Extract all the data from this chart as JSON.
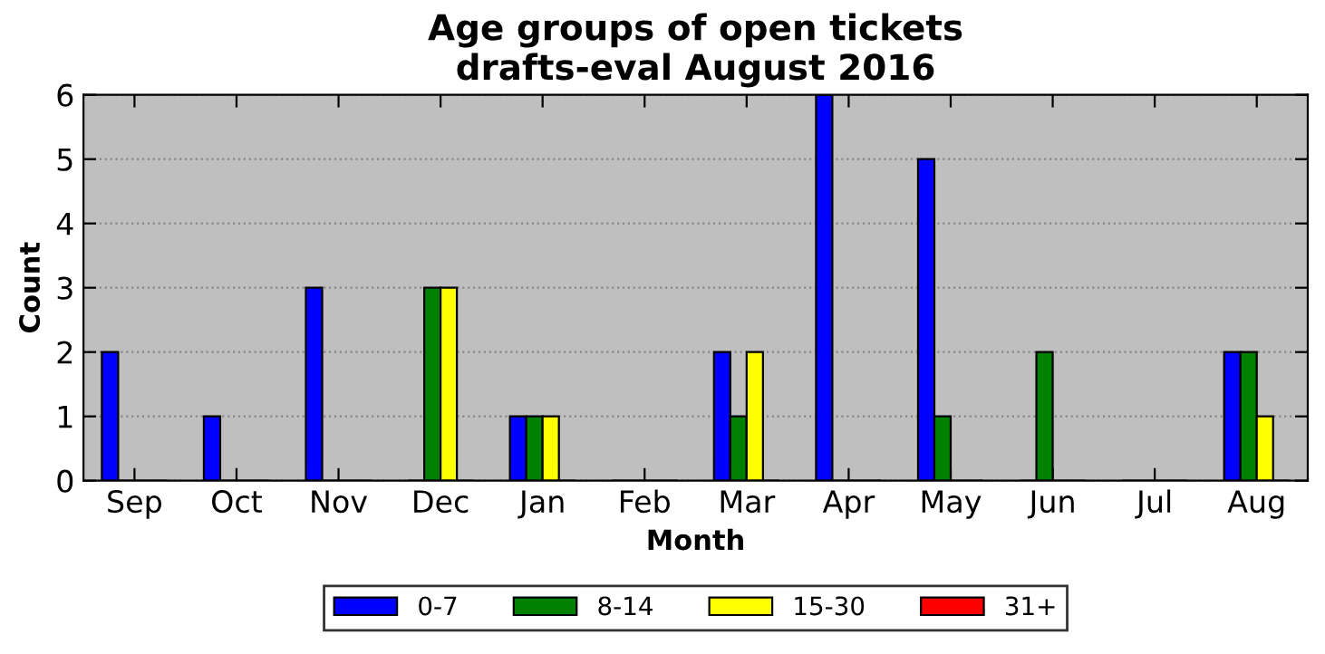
{
  "chart_data": {
    "type": "bar",
    "title": "Age groups of open tickets\ndrafts-eval August 2016",
    "xlabel": "Month",
    "ylabel": "Count",
    "categories": [
      "Sep",
      "Oct",
      "Nov",
      "Dec",
      "Jan",
      "Feb",
      "Mar",
      "Apr",
      "May",
      "Jun",
      "Jul",
      "Aug"
    ],
    "series": [
      {
        "name": "0-7",
        "color": "#0000ff",
        "values": [
          2,
          1,
          3,
          0,
          1,
          0,
          2,
          6,
          5,
          0,
          0,
          2
        ]
      },
      {
        "name": "8-14",
        "color": "#008000",
        "values": [
          0,
          0,
          0,
          3,
          1,
          0,
          1,
          0,
          1,
          2,
          0,
          2
        ]
      },
      {
        "name": "15-30",
        "color": "#ffff00",
        "values": [
          0,
          0,
          0,
          3,
          1,
          0,
          2,
          0,
          0,
          0,
          0,
          1
        ]
      },
      {
        "name": "31+",
        "color": "#ff0000",
        "values": [
          0,
          0,
          0,
          0,
          0,
          0,
          0,
          0,
          0,
          0,
          0,
          0
        ]
      }
    ],
    "ylim": [
      0,
      6
    ],
    "yticks": [
      0,
      1,
      2,
      3,
      4,
      5,
      6
    ],
    "grid": "y",
    "legend": "bottom"
  }
}
